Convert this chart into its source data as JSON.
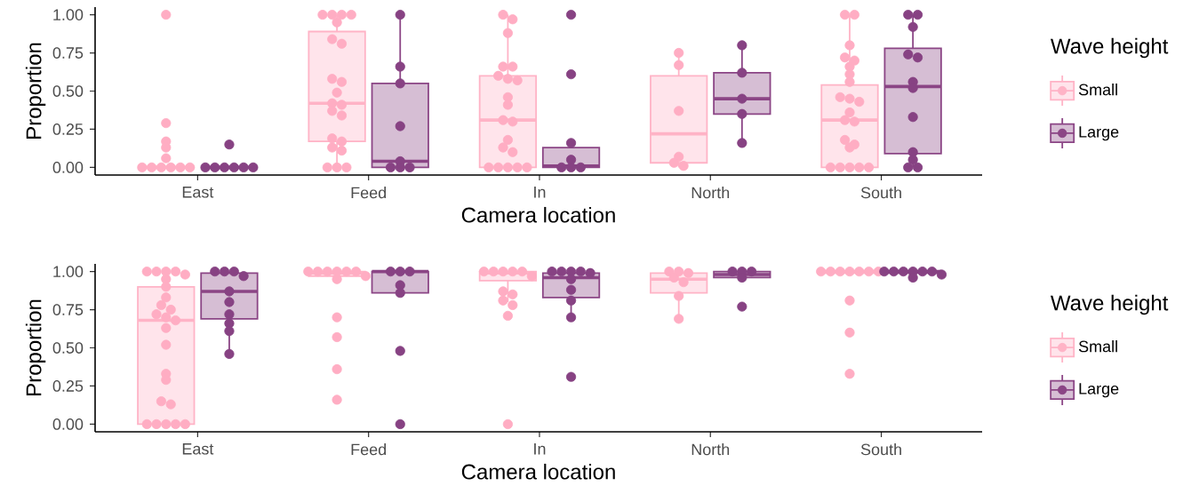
{
  "chart_data": [
    {
      "type": "box",
      "categories": [
        "East",
        "Feed",
        "In",
        "North",
        "South"
      ],
      "xlabel": "Camera location",
      "ylabel": "Proportion",
      "legend_title": "Wave height",
      "legend": "right",
      "marker": "circle",
      "ylim": [
        -0.05,
        1.05
      ],
      "yticks": [
        {
          "value": 0,
          "label": "0.00"
        },
        {
          "value": 0.25,
          "label": "0.25"
        },
        {
          "value": 0.5,
          "label": "0.50"
        },
        {
          "value": 0.75,
          "label": "0.75"
        },
        {
          "value": 1,
          "label": "1.00"
        }
      ],
      "series": [
        {
          "name": "Small",
          "type": "box",
          "color": "#ffb3c6",
          "boxes": [
            {
              "low": 0,
              "q1": 0,
              "median": 0,
              "q3": 0,
              "high": 0
            },
            {
              "low": 0,
              "q1": 0.17,
              "median": 0.42,
              "q3": 0.89,
              "high": 1
            },
            {
              "low": 0,
              "q1": 0,
              "median": 0.31,
              "q3": 0.6,
              "high": 1
            },
            {
              "low": 0,
              "q1": 0.03,
              "median": 0.22,
              "q3": 0.6,
              "high": 0.75
            },
            {
              "low": 0,
              "q1": 0,
              "median": 0.31,
              "q3": 0.54,
              "high": 1
            }
          ]
        },
        {
          "name": "Large",
          "type": "box",
          "color": "#8b4585",
          "boxes": [
            {
              "low": 0,
              "q1": 0,
              "median": 0,
              "q3": 0,
              "high": 0
            },
            {
              "low": 0,
              "q1": 0,
              "median": 0.04,
              "q3": 0.55,
              "high": 1
            },
            {
              "low": 0,
              "q1": 0,
              "median": 0.01,
              "q3": 0.13,
              "high": 0.15
            },
            {
              "low": 0.16,
              "q1": 0.35,
              "median": 0.45,
              "q3": 0.62,
              "high": 0.8
            },
            {
              "low": 0,
              "q1": 0.09,
              "median": 0.53,
              "q3": 0.78,
              "high": 1
            }
          ]
        },
        {
          "type": "scatter",
          "color": "#ffadc3",
          "x": [
            "East",
            "East",
            "East",
            "East",
            "East",
            "East",
            "East",
            "East",
            "East",
            "East",
            "East",
            "Feed",
            "Feed",
            "Feed",
            "Feed",
            "Feed",
            "Feed",
            "Feed",
            "Feed",
            "Feed",
            "Feed",
            "Feed",
            "Feed",
            "Feed",
            "Feed",
            "Feed",
            "Feed",
            "Feed",
            "Feed",
            "Feed",
            "Feed",
            "Feed",
            "In",
            "In",
            "In",
            "In",
            "In",
            "In",
            "In",
            "In",
            "In",
            "In",
            "In",
            "In",
            "In",
            "In",
            "In",
            "In",
            "In",
            "In",
            "In",
            "In",
            "North",
            "North",
            "North",
            "North",
            "North",
            "North",
            "South",
            "South",
            "South",
            "South",
            "South",
            "South",
            "South",
            "South",
            "South",
            "South",
            "South",
            "South",
            "South",
            "South",
            "South",
            "South",
            "South",
            "South",
            "South",
            "South",
            "South",
            "South"
          ],
          "values": [
            1,
            0.29,
            0.17,
            0.13,
            0.06,
            0,
            0,
            0,
            0,
            0,
            0,
            1,
            1,
            1,
            1,
            0.95,
            0.84,
            0.81,
            0.58,
            0.56,
            0.49,
            0.42,
            0.41,
            0.37,
            0.34,
            0.19,
            0.17,
            0.13,
            0.11,
            0,
            0,
            0,
            1,
            0.97,
            0.88,
            0.66,
            0.66,
            0.6,
            0.58,
            0.57,
            0.46,
            0.41,
            0.31,
            0.3,
            0.18,
            0.13,
            0.1,
            0,
            0,
            0,
            0,
            0,
            0.75,
            0.67,
            0.37,
            0.07,
            0.03,
            0.01,
            1,
            1,
            0.8,
            0.72,
            0.7,
            0.66,
            0.61,
            0.56,
            0.46,
            0.45,
            0.43,
            0.36,
            0.31,
            0.3,
            0.18,
            0.15,
            0.13,
            0,
            0,
            0,
            0,
            0
          ]
        },
        {
          "type": "scatter",
          "color": "#874283",
          "x": [
            "East",
            "East",
            "East",
            "East",
            "East",
            "East",
            "East",
            "Feed",
            "Feed",
            "Feed",
            "Feed",
            "Feed",
            "Feed",
            "Feed",
            "Feed",
            "In",
            "In",
            "In",
            "In",
            "In",
            "In",
            "In",
            "North",
            "North",
            "North",
            "North",
            "North",
            "South",
            "South",
            "South",
            "South",
            "South",
            "South",
            "South",
            "South",
            "South",
            "South",
            "South",
            "South"
          ],
          "values": [
            0.15,
            0,
            0,
            0,
            0,
            0,
            0,
            1,
            0.66,
            0.55,
            0.27,
            0.04,
            0,
            0,
            0,
            1,
            0.61,
            0.16,
            0.05,
            0,
            0,
            0,
            0.8,
            0.62,
            0.45,
            0.35,
            0.16,
            1,
            1,
            0.92,
            0.74,
            0.72,
            0.56,
            0.52,
            0.33,
            0.1,
            0.05,
            0,
            0
          ]
        }
      ]
    },
    {
      "type": "box",
      "categories": [
        "East",
        "Feed",
        "In",
        "North",
        "South"
      ],
      "xlabel": "Camera location",
      "ylabel": "Proportion",
      "legend_title": "Wave height",
      "legend": "right",
      "marker": "circle",
      "ylim": [
        -0.05,
        1.05
      ],
      "yticks": [
        {
          "value": 0,
          "label": "0.00"
        },
        {
          "value": 0.25,
          "label": "0.25"
        },
        {
          "value": 0.5,
          "label": "0.50"
        },
        {
          "value": 0.75,
          "label": "0.75"
        },
        {
          "value": 1,
          "label": "1.00"
        }
      ],
      "series": [
        {
          "name": "Small",
          "type": "box",
          "color": "#ffb3c6",
          "boxes": [
            {
              "low": 0,
              "q1": 0,
              "median": 0.68,
              "q3": 0.9,
              "high": 1
            },
            {
              "low": 0.95,
              "q1": 0.97,
              "median": 0.99,
              "q3": 1,
              "high": 1
            },
            {
              "low": 0.8,
              "q1": 0.94,
              "median": 0.99,
              "q3": 1,
              "high": 1
            },
            {
              "low": 0.69,
              "q1": 0.86,
              "median": 0.95,
              "q3": 0.99,
              "high": 1
            },
            {
              "low": 0.99,
              "q1": 0.99,
              "median": 1,
              "q3": 1,
              "high": 1
            }
          ]
        },
        {
          "name": "Large",
          "type": "box",
          "color": "#8b4585",
          "boxes": [
            {
              "low": 0.46,
              "q1": 0.69,
              "median": 0.87,
              "q3": 0.99,
              "high": 1
            },
            {
              "low": 0.86,
              "q1": 0.86,
              "median": 1,
              "q3": 1,
              "high": 1
            },
            {
              "low": 0.7,
              "q1": 0.83,
              "median": 0.96,
              "q3": 0.99,
              "high": 1
            },
            {
              "low": 0.96,
              "q1": 0.96,
              "median": 0.98,
              "q3": 1,
              "high": 1
            },
            {
              "low": 0.99,
              "q1": 0.99,
              "median": 1,
              "q3": 1,
              "high": 1
            }
          ]
        },
        {
          "type": "scatter",
          "color": "#ffadc3",
          "x": [
            "East",
            "East",
            "East",
            "East",
            "East",
            "East",
            "East",
            "East",
            "East",
            "East",
            "East",
            "East",
            "East",
            "East",
            "East",
            "East",
            "East",
            "East",
            "East",
            "East",
            "East",
            "East",
            "East",
            "East",
            "Feed",
            "Feed",
            "Feed",
            "Feed",
            "Feed",
            "Feed",
            "Feed",
            "Feed",
            "Feed",
            "Feed",
            "Feed",
            "Feed",
            "In",
            "In",
            "In",
            "In",
            "In",
            "In",
            "In",
            "In",
            "In",
            "In",
            "In",
            "In",
            "North",
            "North",
            "North",
            "North",
            "North",
            "North",
            "North",
            "South",
            "South",
            "South",
            "South",
            "South",
            "South",
            "South",
            "South",
            "South",
            "South"
          ],
          "values": [
            1,
            1,
            1,
            1,
            0.98,
            0.95,
            0.9,
            0.83,
            0.78,
            0.75,
            0.72,
            0.7,
            0.68,
            0.63,
            0.52,
            0.33,
            0.29,
            0.15,
            0.13,
            0,
            0,
            0,
            0,
            0,
            1,
            1,
            1,
            1,
            1,
            1,
            0.97,
            0.95,
            0.7,
            0.57,
            0.36,
            0.16,
            1,
            1,
            1,
            1,
            1,
            0.97,
            0.87,
            0.85,
            0.81,
            0.78,
            0.71,
            0,
            1,
            1,
            0.99,
            0.96,
            0.93,
            0.84,
            0.69,
            1,
            1,
            1,
            1,
            1,
            1,
            1,
            0.81,
            0.6,
            0.33
          ]
        },
        {
          "type": "scatter",
          "color": "#874283",
          "x": [
            "East",
            "East",
            "East",
            "East",
            "East",
            "East",
            "East",
            "East",
            "East",
            "East",
            "Feed",
            "Feed",
            "Feed",
            "Feed",
            "Feed",
            "Feed",
            "Feed",
            "In",
            "In",
            "In",
            "In",
            "In",
            "In",
            "In",
            "In",
            "In",
            "In",
            "North",
            "North",
            "North",
            "North",
            "North",
            "South",
            "South",
            "South",
            "South",
            "South",
            "South",
            "South",
            "South"
          ],
          "values": [
            1,
            1,
            1,
            0.97,
            0.87,
            0.8,
            0.72,
            0.66,
            0.61,
            0.46,
            1,
            1,
            1,
            0.91,
            0.86,
            0.48,
            0,
            1,
            1,
            1,
            1,
            0.99,
            0.95,
            0.88,
            0.81,
            0.7,
            0.31,
            1,
            1,
            1,
            0.96,
            0.77,
            1,
            1,
            1,
            1,
            1,
            1,
            0.98,
            0.96
          ]
        }
      ]
    }
  ]
}
